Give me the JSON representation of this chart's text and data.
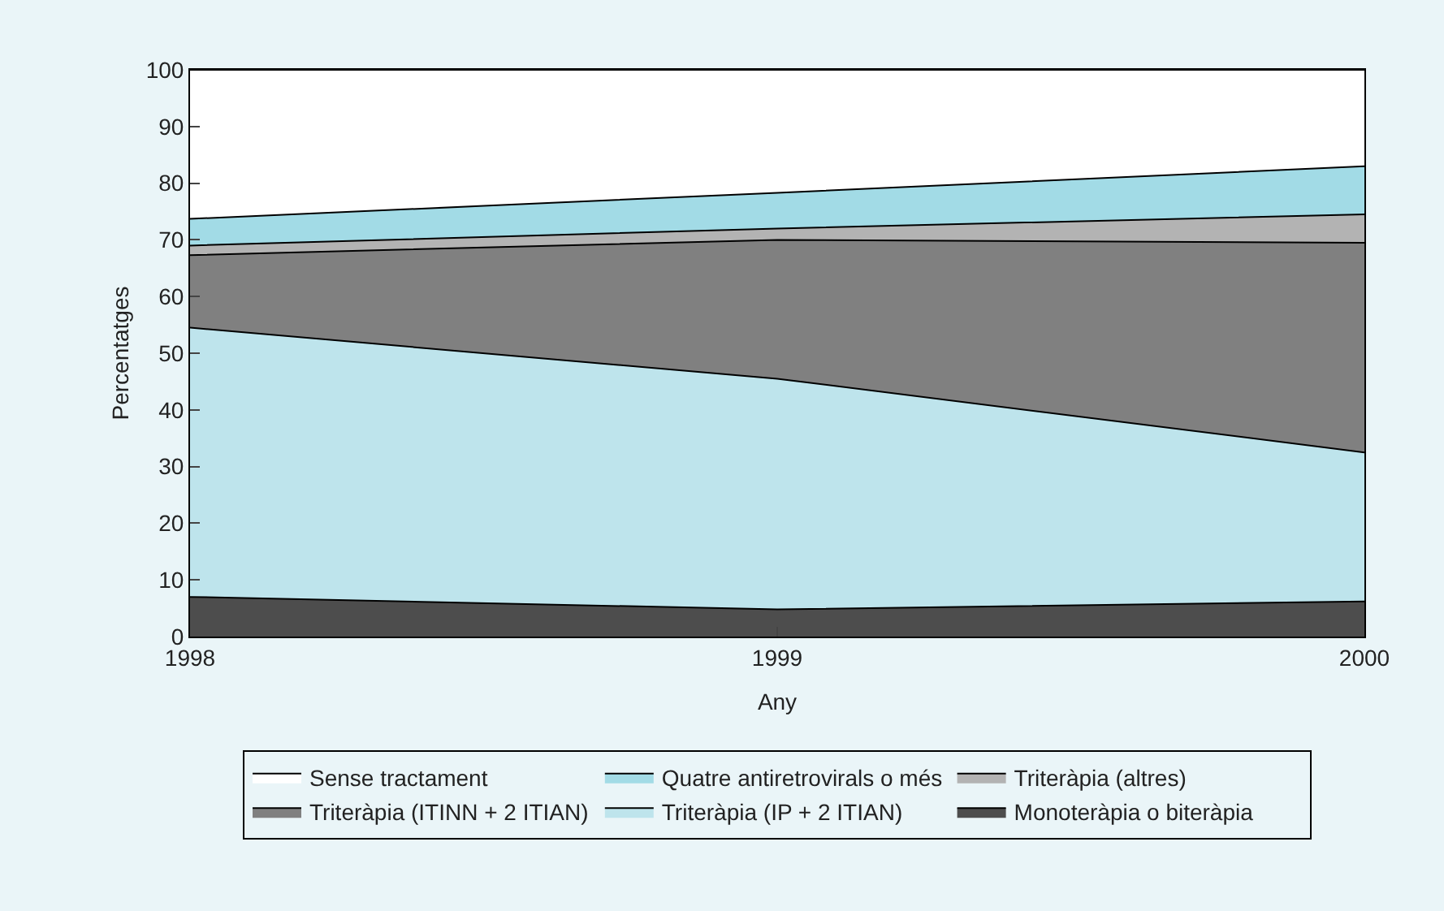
{
  "chart_data": {
    "type": "area",
    "stacked": true,
    "xlabel": "Any",
    "ylabel": "Percentatges",
    "x": [
      1998,
      1999,
      2000
    ],
    "xlim": [
      1998,
      2000
    ],
    "xticks": [
      1998,
      1999,
      2000
    ],
    "ylim": [
      0,
      100
    ],
    "yticks": [
      0,
      10,
      20,
      30,
      40,
      50,
      60,
      70,
      80,
      90,
      100
    ],
    "legend": "bottom",
    "series": [
      {
        "name": "Monoteràpia o biteràpia",
        "color": "#4d4d4d",
        "values": [
          7,
          4.8,
          6.2
        ]
      },
      {
        "name": "Triteràpia (IP + 2 ITIAN)",
        "color": "#bee4ec",
        "values": [
          47.5,
          40.7,
          26.3
        ]
      },
      {
        "name": "Triteràpia (ITINN + 2 ITIAN)",
        "color": "#808080",
        "values": [
          12.8,
          24.5,
          37
        ]
      },
      {
        "name": "Triteràpia (altres)",
        "color": "#b3b3b3",
        "values": [
          1.7,
          2,
          5
        ]
      },
      {
        "name": "Quatre antiretrovirals o més",
        "color": "#a2dbe6",
        "values": [
          4.7,
          6.3,
          8.5
        ]
      },
      {
        "name": "Sense tractament",
        "color": "#ffffff",
        "values": [
          26.3,
          21.7,
          17
        ]
      }
    ]
  }
}
